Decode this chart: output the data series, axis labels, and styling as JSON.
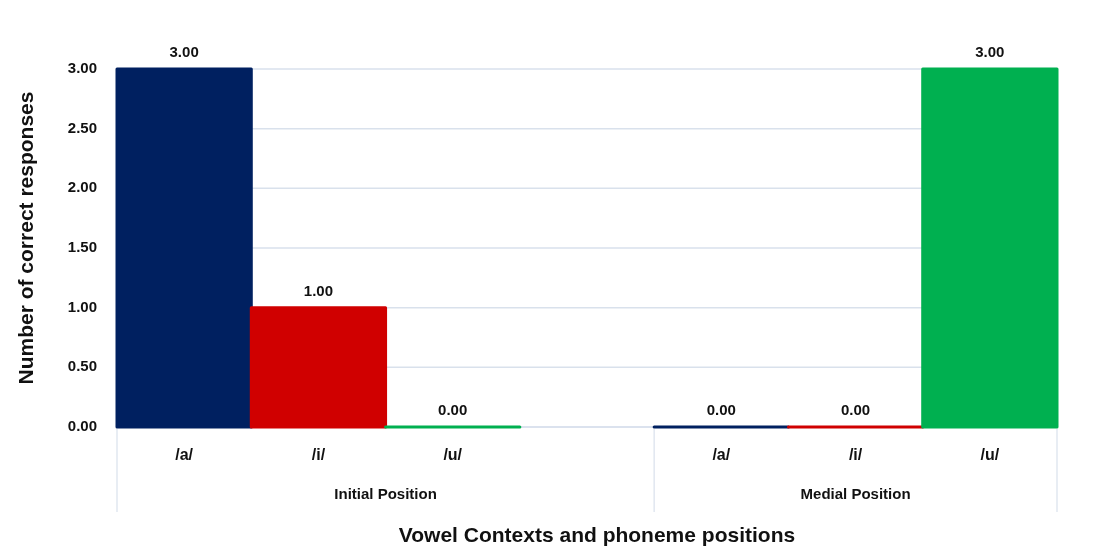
{
  "chart_data": {
    "type": "bar",
    "categories": [
      "/a/",
      "/i/",
      "/u/",
      null,
      "/a/",
      "/i/",
      "/u/"
    ],
    "values": [
      3,
      1,
      0,
      null,
      0,
      0,
      3
    ],
    "colors": [
      "#002060",
      "#d00000",
      "#00b050",
      null,
      "#002060",
      "#d00000",
      "#00b050"
    ],
    "value_labels": [
      "3.00",
      "1.00",
      "0.00",
      null,
      "0.00",
      "0.00",
      "3.00"
    ],
    "ylabel": "Number of correct responses",
    "xlabel": "Vowel Contexts and phoneme positions",
    "annotations": [
      "Initial Position",
      "Medial Position"
    ],
    "ylim": [
      0,
      3
    ],
    "yticks": [
      {
        "value": 0,
        "label": "0.00"
      },
      {
        "value": 0.5,
        "label": "0.50"
      },
      {
        "value": 1,
        "label": "1.00"
      },
      {
        "value": 1.5,
        "label": "1.50"
      },
      {
        "value": 2,
        "label": "2.00"
      },
      {
        "value": 2.5,
        "label": "2.50"
      },
      {
        "value": 3,
        "label": "3.00"
      }
    ],
    "grid": "y"
  }
}
